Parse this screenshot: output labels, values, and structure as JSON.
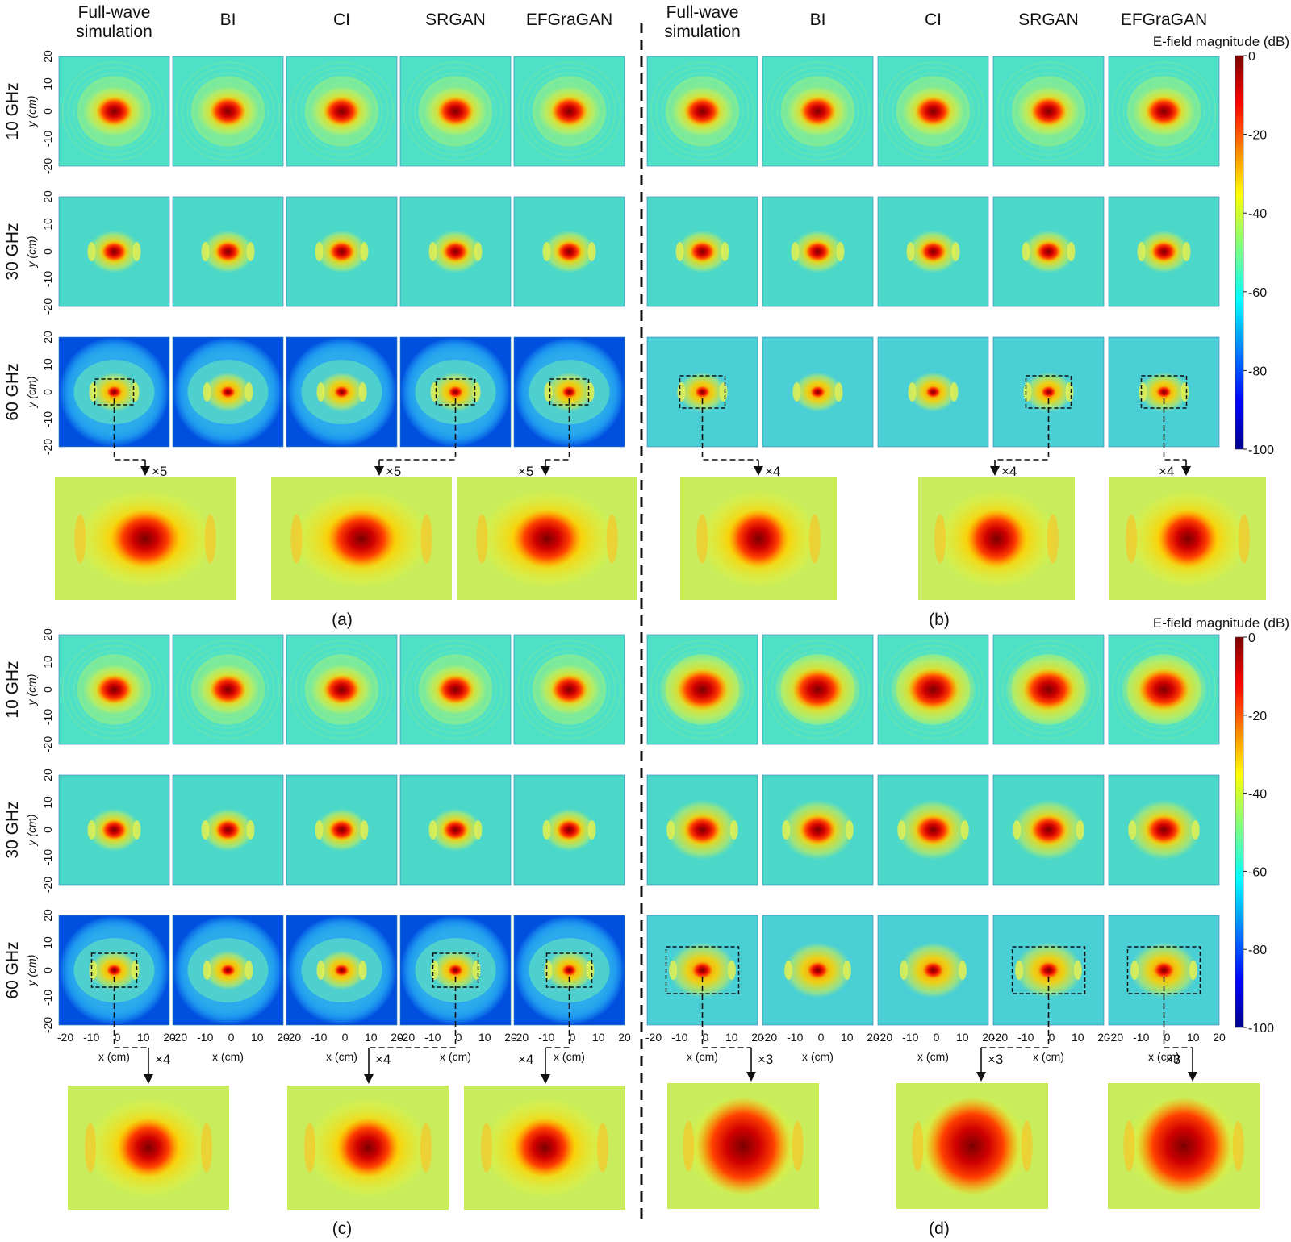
{
  "column_headers": [
    "Full-wave\nsimulation",
    "BI",
    "CI",
    "SRGAN",
    "EFGraGAN"
  ],
  "row_labels": [
    "10 GHz",
    "30 GHz",
    "60 GHz"
  ],
  "y_axis_label": "y (cm)",
  "x_axis_label": "x (cm)",
  "axis_ticks": [
    "-20",
    "-10",
    "0",
    "10",
    "20"
  ],
  "colorbar": {
    "title": "E-field magnitude (dB)",
    "ticks": [
      "0",
      "-20",
      "-40",
      "-60",
      "-80",
      "-100"
    ],
    "colormap": "jet",
    "range": [
      -100,
      0
    ]
  },
  "panels": [
    {
      "label": "(a)",
      "magnification": "×5",
      "zoomed_columns": [
        "Full-wave simulation",
        "SRGAN",
        "EFGraGAN"
      ]
    },
    {
      "label": "(b)",
      "magnification": "×4",
      "zoomed_columns": [
        "Full-wave simulation",
        "SRGAN",
        "EFGraGAN"
      ]
    },
    {
      "label": "(c)",
      "magnification": "×4",
      "zoomed_columns": [
        "Full-wave simulation",
        "SRGAN",
        "EFGraGAN"
      ]
    },
    {
      "label": "(d)",
      "magnification": "×3",
      "zoomed_columns": [
        "Full-wave simulation",
        "SRGAN",
        "EFGraGAN"
      ]
    }
  ]
}
